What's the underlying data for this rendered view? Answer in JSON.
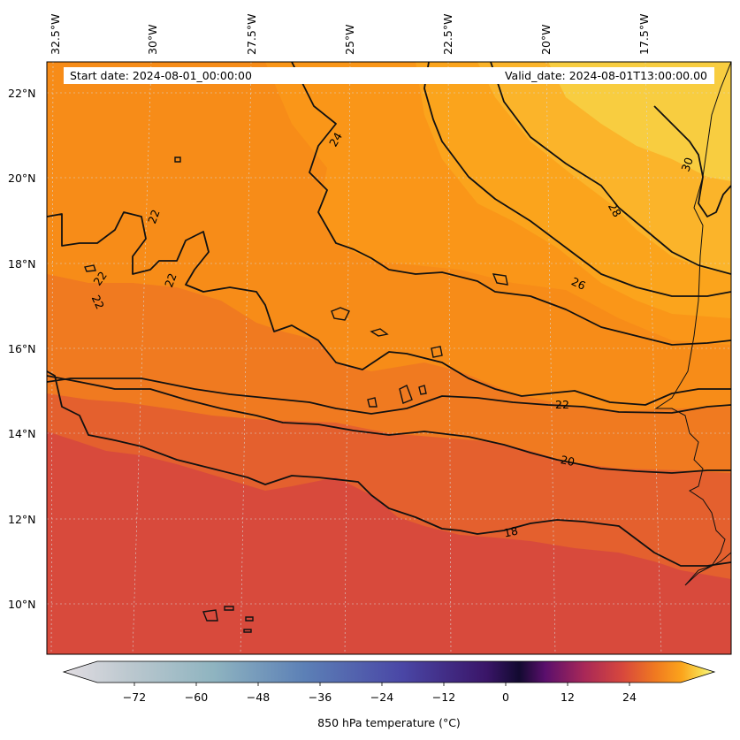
{
  "map": {
    "start_date": "Start date: 2024-08-01_00:00:00",
    "valid_date": "Valid_date: 2024-08-01T13:00:00.00",
    "longitude_labels": [
      "32.5°W",
      "30°W",
      "27.5°W",
      "25°W",
      "22.5°W",
      "20°W",
      "17.5°W"
    ],
    "latitude_labels": [
      "22°N",
      "20°N",
      "18°N",
      "16°N",
      "14°N",
      "12°N",
      "10°N"
    ],
    "contour_labels": [
      "30",
      "28",
      "26",
      "24",
      "22",
      "22",
      "22",
      "22",
      "22",
      "20",
      "18"
    ],
    "gridlines": "dashed"
  },
  "colorbar": {
    "label": "850 hPa temperature (°C)",
    "ticks": [
      "−72",
      "−60",
      "−48",
      "−36",
      "−24",
      "−12",
      "0",
      "12",
      "24"
    ],
    "colors": {
      "min": "#e2dde2",
      "cold": "#5874b0",
      "purple": "#3a1568",
      "zero": "#120a30",
      "mid": "#c0305a",
      "warm": "#f08020",
      "max": "#fafc94"
    },
    "extend": "both"
  },
  "field_colors": {
    "t16": "#d84a3c",
    "t18": "#e4602e",
    "t20": "#f07a20",
    "t22": "#f78c18",
    "t24": "#fa9618",
    "t26": "#fba41c",
    "t28": "#fbb42a",
    "t30": "#f8cd40"
  }
}
